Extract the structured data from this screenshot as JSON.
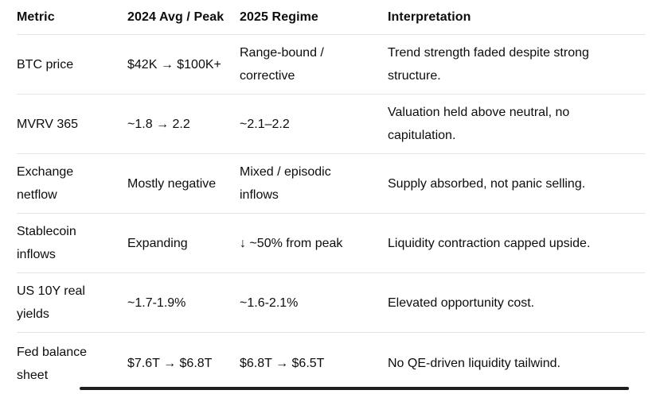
{
  "chart_data": {
    "type": "table",
    "title": "",
    "columns": [
      "Metric",
      "2024 Avg / Peak",
      "2025 Regime",
      "Interpretation"
    ],
    "rows": [
      [
        "BTC price",
        "$42K → $100K+",
        "Range-bound / corrective",
        "Trend strength faded despite strong structure."
      ],
      [
        "MVRV 365",
        "~1.8 → 2.2",
        "~2.1–2.2",
        "Valuation held above neutral, no capitulation."
      ],
      [
        "Exchange netflow",
        "Mostly negative",
        "Mixed / episodic inflows",
        "Supply absorbed, not panic selling."
      ],
      [
        "Stablecoin inflows",
        "Expanding",
        "↓ ~50% from peak",
        "Liquidity contraction capped upside."
      ],
      [
        "US 10Y real yields",
        "~1.7-1.9%",
        "~1.6-2.1%",
        "Elevated opportunity cost."
      ],
      [
        "Fed balance sheet",
        "$7.6T → $6.8T",
        "$6.8T → $6.5T",
        "No QE-driven liquidity tailwind."
      ]
    ],
    "layout": {
      "grid": "off",
      "row_dividers": "on",
      "header_style": "bold"
    }
  },
  "colors": {
    "text": "#0d0d0d",
    "divider": "#e3e3e3",
    "background": "#ffffff",
    "scrollbar_thumb": "#1f1f1f"
  }
}
